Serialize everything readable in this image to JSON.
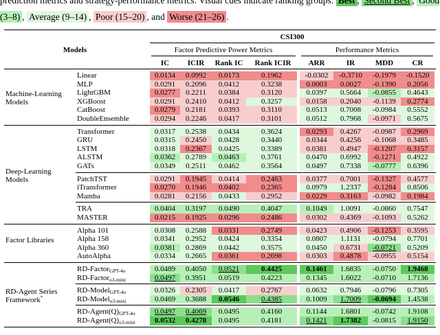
{
  "caption": {
    "lead": "prediction metrics and strategy-performance metrics. Visual cues indicate ranking groups:",
    "legend": [
      {
        "label": "Best",
        "color": "#5cc85c",
        "bold": true,
        "underline": false
      },
      {
        "label": "Second Best",
        "color": "#8cdf8c",
        "bold": false,
        "underline": true
      },
      {
        "label": "Good (3–8)",
        "color": "#b6f0b6",
        "bold": false,
        "underline": false
      },
      {
        "label": "Average (9–14)",
        "color": "#ddf8dd",
        "bold": false,
        "underline": false
      },
      {
        "label": "Poor (15–20)",
        "color": "#f8cdcd",
        "bold": false,
        "underline": false
      },
      {
        "label": "Worse (21–26)",
        "color": "#f08c8c",
        "bold": false,
        "underline": false
      }
    ],
    "separator": ",",
    "conjunction": "and",
    "period": "."
  },
  "table": {
    "dataset": "CSI300",
    "models_header": "Models",
    "metric_groups": [
      "Factor Predictive Power Metrics",
      "Performance Metrics"
    ],
    "columns": [
      "IC",
      "ICIR",
      "Rank IC",
      "Rank ICIR",
      "ARR",
      "IR",
      "MDD",
      "CR"
    ],
    "groups": [
      {
        "label": "Machine-Learning Models",
        "blocks": [
          [
            {
              "model": "Linear",
              "values": [
                "0.0134",
                "0.0992",
                "0.0173",
                "0.1962",
                "-0.0302",
                "-0.3710",
                "-0.1979",
                "-0.1520"
              ],
              "ranks": [
                5,
                5,
                5,
                5,
                4,
                5,
                5,
                5
              ]
            },
            {
              "model": "MLP",
              "values": [
                "0.0291",
                "0.2096",
                "0.0412",
                "0.3238",
                "0.0003",
                "0.0027",
                "-0.1390",
                "0.2056"
              ],
              "ranks": [
                4,
                4,
                4,
                4,
                5,
                5,
                5,
                5
              ]
            },
            {
              "model": "LightGBM",
              "values": [
                "0.0277",
                "0.2211",
                "0.0384",
                "0.3120",
                "0.0397",
                "0.5664",
                "-0.0855",
                "0.4643"
              ],
              "ranks": [
                5,
                4,
                4,
                4,
                3,
                3,
                2,
                3
              ]
            },
            {
              "model": "XGBoost",
              "values": [
                "0.0291",
                "0.2410",
                "0.0412",
                "0.3257",
                "0.0158",
                "0.2040",
                "-0.1139",
                "0.2774"
              ],
              "ranks": [
                4,
                4,
                4,
                3,
                4,
                4,
                4,
                5
              ]
            },
            {
              "model": "CatBoost",
              "values": [
                "0.0279",
                "0.2181",
                "0.0393",
                "0.3110",
                "0.0513",
                "0.7008",
                "-0.0984",
                "0.5552"
              ],
              "ranks": [
                5,
                4,
                4,
                4,
                3,
                3,
                3,
                3
              ]
            },
            {
              "model": "DoubleEnsemble",
              "values": [
                "0.0294",
                "0.2246",
                "0.0417",
                "0.3101",
                "0.0512",
                "0.7968",
                "-0.0971",
                "0.5675"
              ],
              "ranks": [
                4,
                4,
                4,
                4,
                3,
                3,
                4,
                3
              ]
            }
          ]
        ]
      },
      {
        "label": "Deep-Learning Models",
        "blocks": [
          [
            {
              "model": "Transformer",
              "values": [
                "0.0317",
                "0.2538",
                "0.0434",
                "0.3624",
                "0.0293",
                "0.4267",
                "-0.0987",
                "0.2969"
              ],
              "ranks": [
                3,
                3,
                3,
                3,
                5,
                4,
                4,
                5
              ]
            },
            {
              "model": "GRU",
              "values": [
                "0.0315",
                "0.2450",
                "0.0428",
                "0.3440",
                "0.0344",
                "0.4256",
                "-0.1068",
                "0.3485"
              ],
              "ranks": [
                3,
                4,
                3,
                3,
                4,
                4,
                4,
                4
              ]
            },
            {
              "model": "LSTM",
              "values": [
                "0.0318",
                "0.2367",
                "0.0425",
                "0.3389",
                "0.0381",
                "0.4947",
                "-0.1207",
                "0.3157"
              ],
              "ranks": [
                3,
                5,
                3,
                3,
                4,
                4,
                5,
                5
              ]
            },
            {
              "model": "ALSTM",
              "values": [
                "0.0362",
                "0.2789",
                "0.0463",
                "0.3761",
                "0.0470",
                "0.6992",
                "-0.1271",
                "0.4922"
              ],
              "ranks": [
                2,
                3,
                2,
                3,
                3,
                3,
                5,
                3
              ]
            },
            {
              "model": "GATs",
              "values": [
                "0.0349",
                "0.2511",
                "0.0462",
                "0.3564",
                "0.0497",
                "0.7338",
                "-0.0777",
                "0.6396"
              ],
              "ranks": [
                3,
                3,
                3,
                3,
                3,
                3,
                2,
                3
              ]
            }
          ],
          [
            {
              "model": "PatchTST",
              "values": [
                "0.0291",
                "0.1945",
                "0.0414",
                "0.2463",
                "0.0377",
                "0.7001",
                "-0.1327",
                "0.4577"
              ],
              "ranks": [
                4,
                5,
                4,
                5,
                4,
                4,
                5,
                4
              ]
            },
            {
              "model": "iTransformer",
              "values": [
                "0.0270",
                "0.1946",
                "0.0402",
                "0.2365",
                "0.0979",
                "1.2337",
                "-0.1284",
                "0.8506"
              ],
              "ranks": [
                5,
                5,
                5,
                5,
                3,
                3,
                5,
                3
              ]
            },
            {
              "model": "Mamba",
              "values": [
                "0.0281",
                "0.2156",
                "0.0433",
                "0.2952",
                "0.0229",
                "0.3163",
                "-0.0982",
                "0.1984"
              ],
              "ranks": [
                4,
                4,
                3,
                4,
                5,
                5,
                4,
                5
              ]
            }
          ],
          [
            {
              "model": "TRA",
              "values": [
                "0.0404",
                "0.3197",
                "0.0490",
                "0.4047",
                "0.1049",
                "1.0091",
                "-0.0860",
                "0.7547"
              ],
              "ranks": [
                2,
                2,
                2,
                2,
                2,
                3,
                3,
                3
              ]
            },
            {
              "model": "MASTER",
              "values": [
                "0.0215",
                "0.1925",
                "0.0296",
                "0.2486",
                "0.0302",
                "0.4369",
                "-0.1093",
                "0.5262"
              ],
              "ranks": [
                5,
                5,
                5,
                5,
                4,
                4,
                4,
                3
              ]
            }
          ]
        ]
      },
      {
        "label": "Factor Libraries",
        "blocks": [
          [
            {
              "model": "Alpha 101",
              "values": [
                "0.0308",
                "0.2588",
                "0.0331",
                "0.2749",
                "0.0423",
                "0.4906",
                "-0.1253",
                "0.3595"
              ],
              "ranks": [
                3,
                3,
                5,
                5,
                4,
                4,
                5,
                4
              ]
            },
            {
              "model": "Alpha 158",
              "values": [
                "0.0341",
                "0.2952",
                "0.0424",
                "0.3354",
                "0.0807",
                "1.1131",
                "-0.0794",
                "0.7701"
              ],
              "ranks": [
                3,
                3,
                3,
                3,
                3,
                3,
                3,
                3
              ]
            },
            {
              "model": "Alpha 360",
              "values": [
                "0.0381",
                "0.2869",
                "0.0442",
                "0.3575",
                "0.0450",
                "0.6731",
                "-0.0721",
                "0.5209"
              ],
              "ranks": [
                2,
                3,
                3,
                3,
                3,
                4,
                1,
                3
              ]
            },
            {
              "model": "AutoAlpha",
              "values": [
                "0.0334",
                "0.2665",
                "0.0361",
                "0.2698",
                "0.0303",
                "0.4878",
                "-0.0955",
                "0.5154"
              ],
              "ranks": [
                3,
                3,
                5,
                5,
                4,
                5,
                4,
                4
              ]
            }
          ]
        ]
      },
      {
        "label": "RD-Agent Series Framework",
        "note": "*",
        "blocks": [
          [
            {
              "model": "RD-Factor",
              "sub": "GPT-4o",
              "values": [
                "0.0489",
                "0.4050",
                "0.0521",
                "0.4425",
                "0.1461",
                "1.6835",
                "-0.0750",
                "1.9468"
              ],
              "ranks": [
                2,
                2,
                1,
                0,
                0,
                2,
                2,
                0
              ]
            },
            {
              "model": "RD-Factor",
              "sub": "o3-mini",
              "values": [
                "0.0497",
                "0.3951",
                "0.0519",
                "0.4223",
                "0.1345",
                "1.6022",
                "-0.0710",
                "1.7136"
              ],
              "ranks": [
                1,
                2,
                2,
                2,
                2,
                2,
                2,
                2
              ]
            }
          ],
          [
            {
              "model": "RD-Model",
              "sub": "GPT-4o",
              "values": [
                "0.0326",
                "0.2305",
                "0.0417",
                "0.2767",
                "0.0632",
                "0.7946",
                "-0.0796",
                "0.7305"
              ],
              "ranks": [
                3,
                4,
                3,
                4,
                3,
                3,
                3,
                3
              ]
            },
            {
              "model": "RD-Model",
              "sub": "o3-mini",
              "values": [
                "0.0469",
                "0.3688",
                "0.0546",
                "0.4385",
                "0.1009",
                "1.7009",
                "-0.0694",
                "1.4538"
              ],
              "ranks": [
                2,
                2,
                0,
                1,
                2,
                1,
                0,
                2
              ]
            }
          ],
          [
            {
              "model": "RD-Agent(Q)",
              "sub": "GPT-4o",
              "values": [
                "0.0497",
                "0.4069",
                "0.0495",
                "0.4160",
                "0.1144",
                "1.6801",
                "-0.0742",
                "1.9108"
              ],
              "ranks": [
                1,
                1,
                2,
                2,
                2,
                2,
                2,
                2
              ]
            },
            {
              "model": "RD-Agent(Q)",
              "sub": "o3-mini",
              "values": [
                "0.0532",
                "0.4278",
                "0.0495",
                "0.4181",
                "0.1421",
                "1.7382",
                "-0.0815",
                "1.9150"
              ],
              "ranks": [
                0,
                0,
                2,
                2,
                1,
                0,
                2,
                1
              ]
            }
          ]
        ]
      }
    ]
  }
}
